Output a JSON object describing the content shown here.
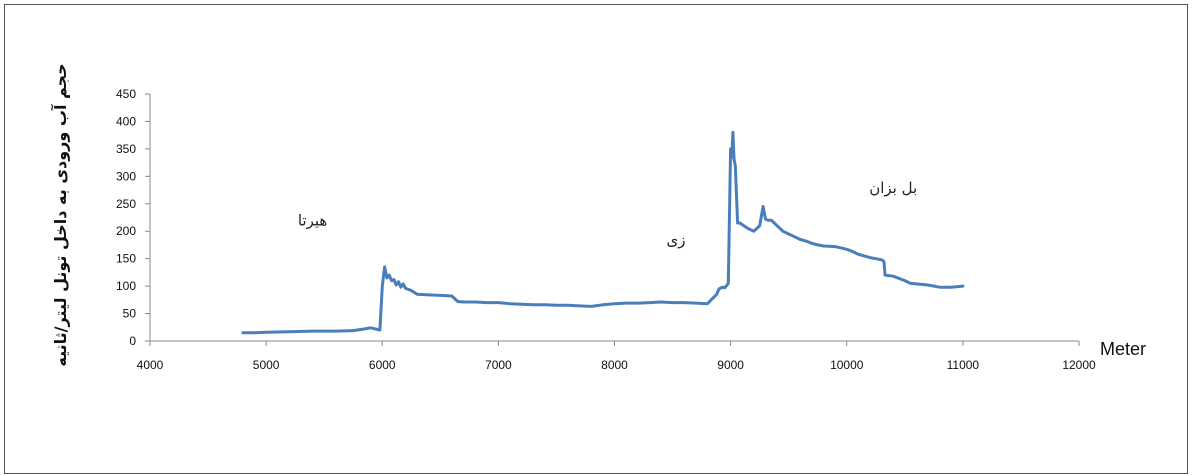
{
  "chart_data": {
    "type": "line",
    "title": "",
    "xlabel": "Meter",
    "ylabel": "حجم آب ورودی به داخل تونل لیتر/ثانیه",
    "xlim": [
      4000,
      12000
    ],
    "ylim": [
      0,
      450
    ],
    "x_ticks": [
      "4000",
      "5000",
      "6000",
      "7000",
      "8000",
      "9000",
      "10000",
      "11000",
      "12000"
    ],
    "y_ticks": [
      "0",
      "50",
      "100",
      "150",
      "200",
      "250",
      "300",
      "350",
      "400",
      "450"
    ],
    "grid": false,
    "legend": "none",
    "line_color": "#4a7ebb",
    "annotations": [
      {
        "text": "هیرتا",
        "x": 5400,
        "y": 210
      },
      {
        "text": "زی",
        "x": 8530,
        "y": 175
      },
      {
        "text": "بل بزان",
        "x": 10400,
        "y": 270
      }
    ],
    "series": [
      {
        "x": [
          4800,
          4900,
          5000,
          5200,
          5400,
          5600,
          5750,
          5850,
          5900,
          5980,
          6000,
          6020,
          6040,
          6060,
          6080,
          6100,
          6120,
          6140,
          6160,
          6180,
          6200,
          6250,
          6300,
          6400,
          6500,
          6600,
          6650,
          6700,
          6800,
          6900,
          7000,
          7100,
          7200,
          7300,
          7400,
          7500,
          7600,
          7700,
          7800,
          7900,
          8000,
          8100,
          8200,
          8300,
          8400,
          8500,
          8600,
          8700,
          8800,
          8880,
          8900,
          8930,
          8950,
          8980,
          9000,
          9010,
          9020,
          9030,
          9040,
          9060,
          9080,
          9100,
          9150,
          9200,
          9250,
          9280,
          9300,
          9320,
          9350,
          9400,
          9450,
          9500,
          9550,
          9600,
          9650,
          9700,
          9750,
          9800,
          9900,
          10000,
          10050,
          10100,
          10150,
          10200,
          10250,
          10300,
          10320,
          10330,
          10400,
          10500,
          10550,
          10600,
          10700,
          10800,
          10900,
          11000
        ],
        "y": [
          15,
          15,
          16,
          17,
          18,
          18,
          19,
          22,
          24,
          20,
          100,
          135,
          115,
          120,
          110,
          112,
          102,
          108,
          98,
          104,
          96,
          92,
          85,
          84,
          83,
          82,
          72,
          71,
          71,
          70,
          70,
          68,
          67,
          66,
          66,
          65,
          65,
          64,
          63,
          66,
          68,
          69,
          69,
          70,
          71,
          70,
          70,
          69,
          68,
          85,
          95,
          98,
          97,
          105,
          350,
          335,
          380,
          330,
          320,
          215,
          215,
          212,
          205,
          200,
          210,
          245,
          222,
          220,
          220,
          210,
          200,
          195,
          190,
          185,
          182,
          178,
          175,
          173,
          172,
          167,
          163,
          158,
          155,
          152,
          150,
          148,
          145,
          120,
          118,
          110,
          105,
          104,
          102,
          98,
          98,
          100
        ]
      }
    ]
  }
}
